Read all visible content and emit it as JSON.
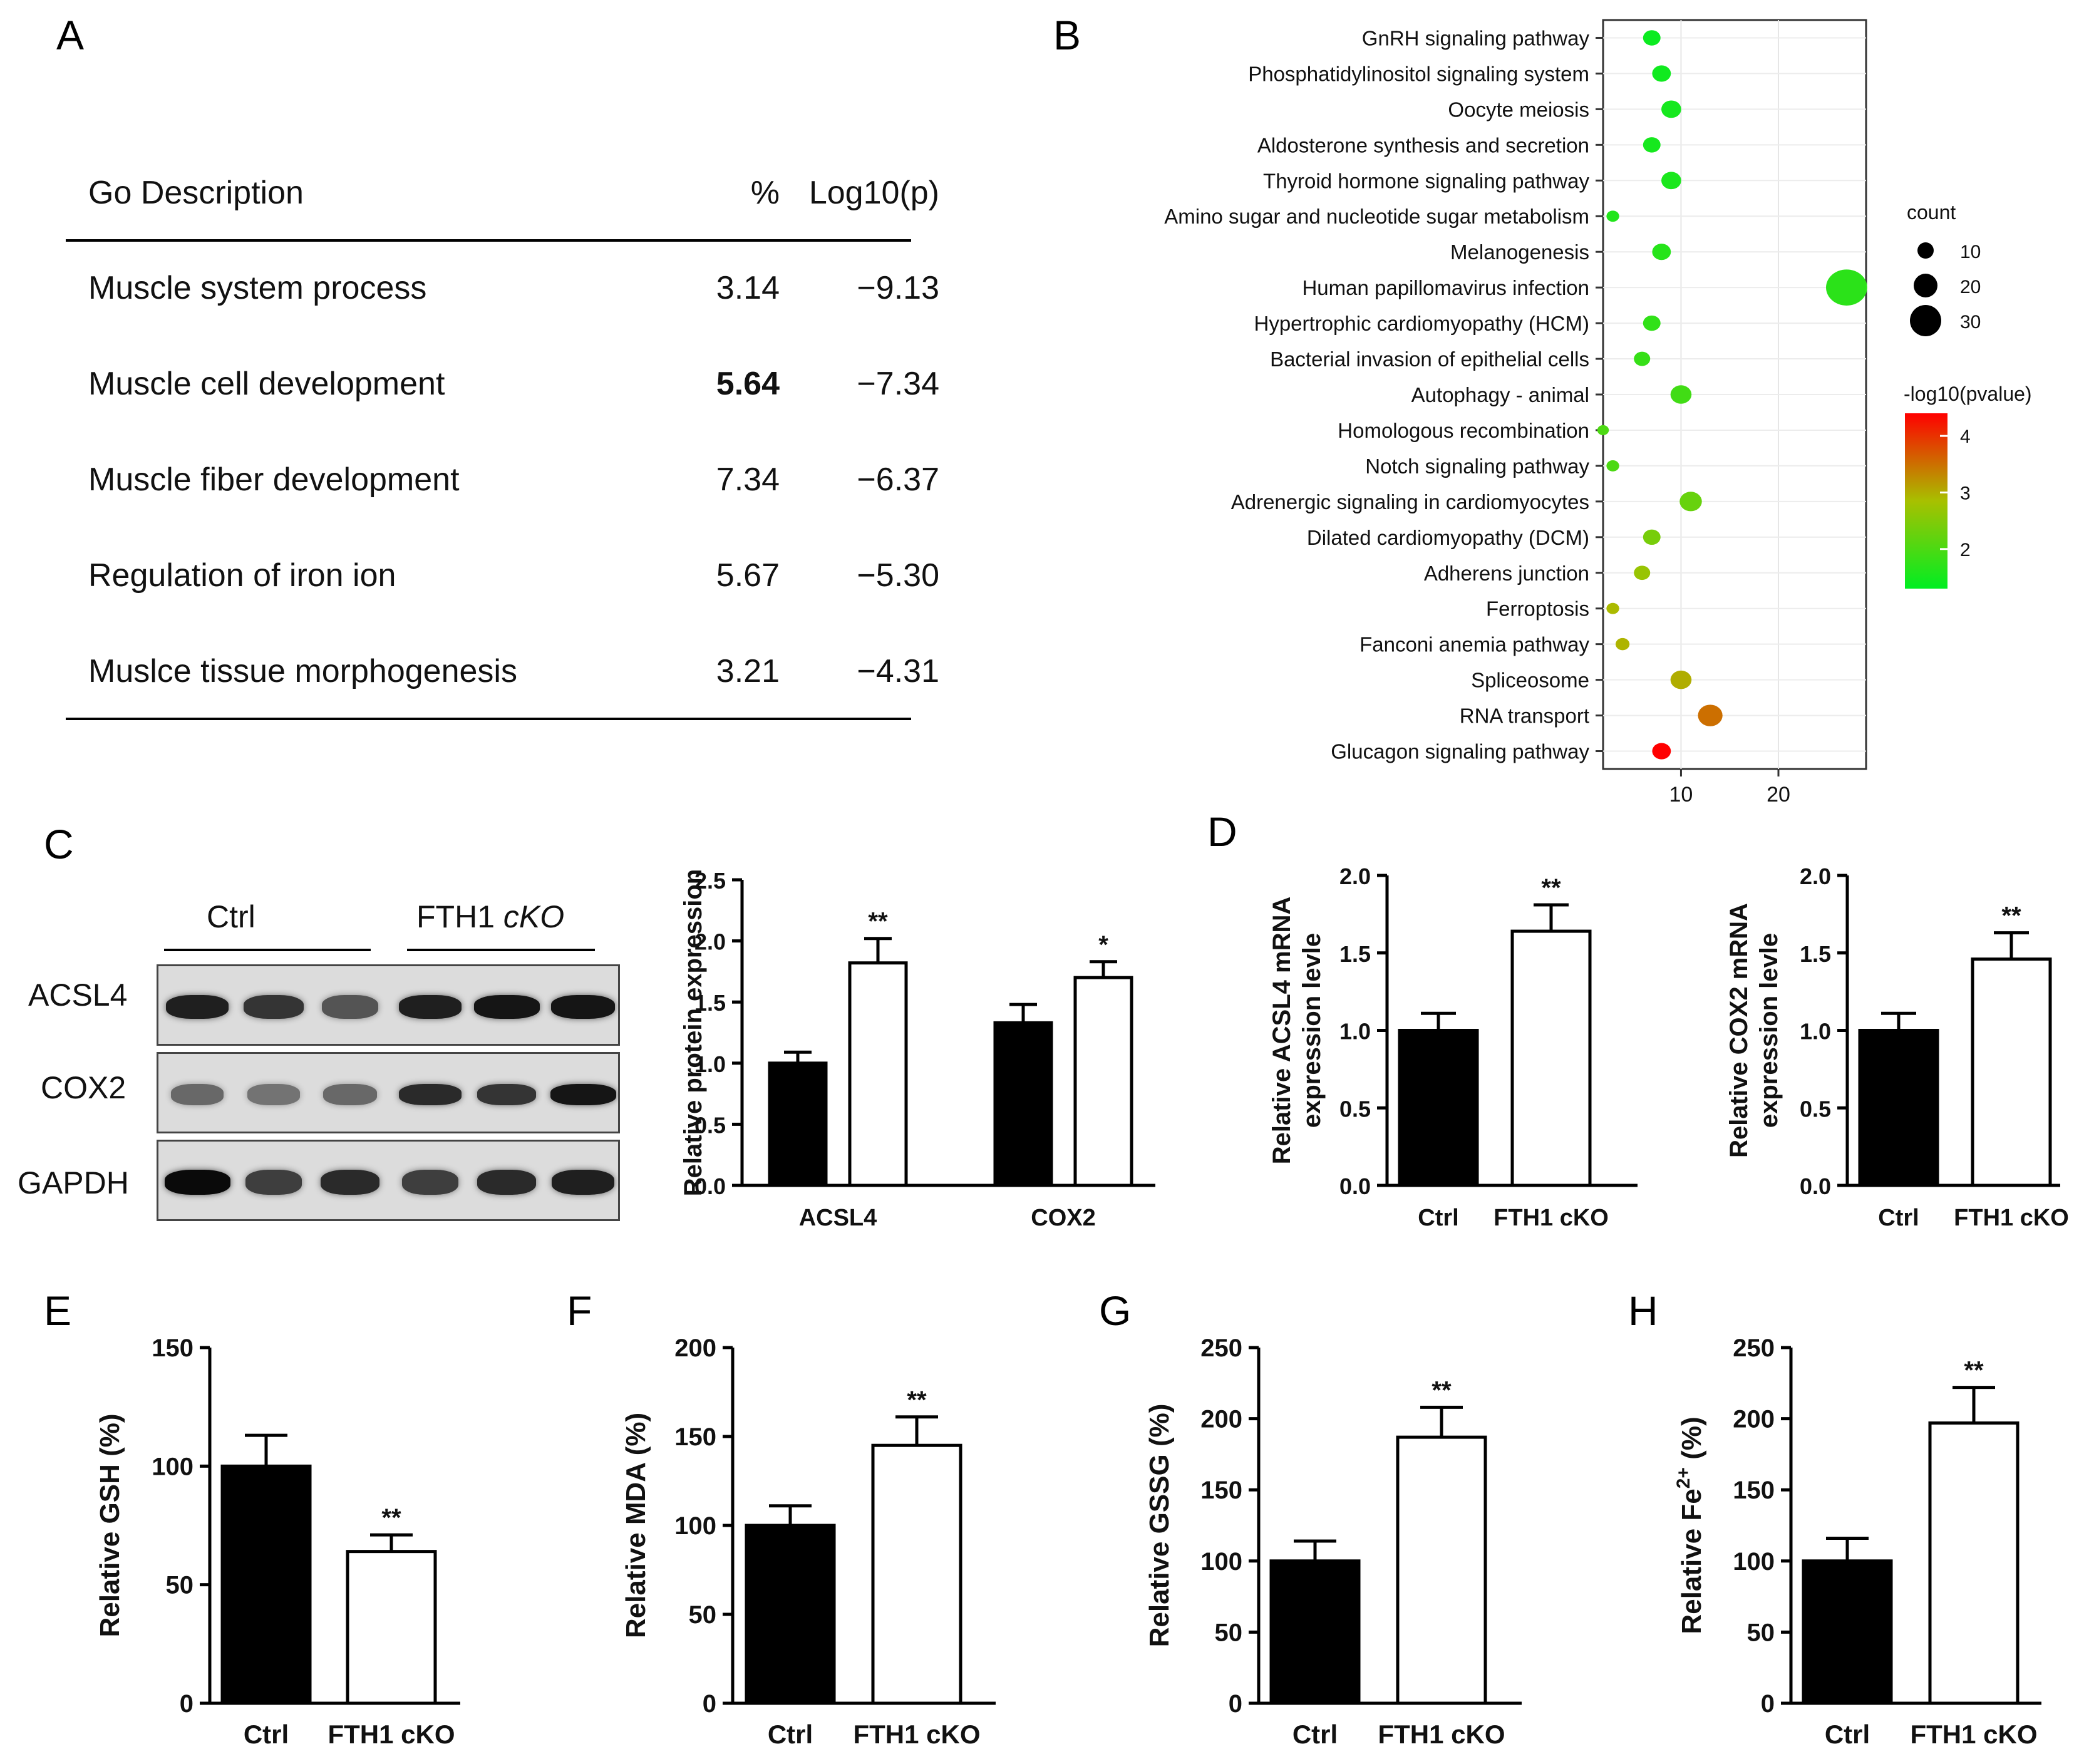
{
  "panels": {
    "A": "A",
    "B": "B",
    "C": "C",
    "D": "D",
    "E": "E",
    "F": "F",
    "G": "G",
    "H": "H"
  },
  "go_table": {
    "headers": [
      "Go Description",
      "%",
      "Log10(p)"
    ],
    "rows": [
      {
        "term": "Muscle system process",
        "pct": "3.14",
        "logp": "−9.13"
      },
      {
        "term": "Muscle cell development",
        "pct": "5.64",
        "logp": "−7.34"
      },
      {
        "term": "Muscle fiber development",
        "pct": "7.34",
        "logp": "−6.37"
      },
      {
        "term": "Regulation of iron ion",
        "pct": "5.67",
        "logp": "−5.30"
      },
      {
        "term": "Muslce tissue morphogenesis",
        "pct": "3.21",
        "logp": "−4.31"
      }
    ]
  },
  "western_blot": {
    "groups": [
      "Ctrl",
      "FTH1 cKO"
    ],
    "rows": [
      "ACSL4",
      "COX2",
      "GAPDH"
    ]
  },
  "chart_data": [
    {
      "id": "B",
      "type": "scatter",
      "title": "",
      "xlabel": "",
      "ylabel": "",
      "xlim": [
        2,
        29
      ],
      "xticks": [
        10,
        20
      ],
      "categories": [
        "GnRH signaling pathway",
        "Phosphatidylinositol signaling system",
        "Oocyte meiosis",
        "Aldosterone synthesis and secretion",
        "Thyroid hormone signaling pathway",
        "Amino sugar and nucleotide sugar metabolism",
        "Melanogenesis",
        "Human papillomavirus infection",
        "Hypertrophic cardiomyopathy (HCM)",
        "Bacterial invasion of epithelial cells",
        "Autophagy - animal",
        "Homologous recombination",
        "Notch signaling pathway",
        "Adrenergic signaling in cardiomyocytes",
        "Dilated cardiomyopathy (DCM)",
        "Adherens junction",
        "Ferroptosis",
        "Fanconi anemia pathway",
        "Spliceosome",
        "RNA transport",
        "Glucagon signaling pathway"
      ],
      "count": [
        7,
        8,
        9,
        7,
        9,
        3,
        8,
        27,
        7,
        6,
        10,
        2,
        3,
        11,
        7,
        6,
        3,
        4,
        10,
        13,
        8
      ],
      "neglog10p": [
        1.4,
        1.45,
        1.5,
        1.5,
        1.55,
        1.6,
        1.65,
        1.7,
        1.75,
        1.8,
        1.9,
        2.0,
        2.0,
        2.25,
        2.4,
        2.7,
        2.9,
        2.95,
        3.0,
        3.5,
        4.4
      ],
      "size_legend": {
        "title": "count",
        "values": [
          10,
          20,
          30
        ]
      },
      "color_legend": {
        "title": "-log10(pvalue)",
        "ticks": [
          2,
          3,
          4
        ],
        "range": [
          1.3,
          4.4
        ],
        "low_color": "#00ee22",
        "mid_color": "#a8c000",
        "high_color": "#ff0000"
      }
    },
    {
      "id": "C",
      "type": "bar",
      "ylabel": "Relative protein expression",
      "categories": [
        "ACSL4",
        "COX2"
      ],
      "ylim": [
        0,
        2.5
      ],
      "yticks": [
        "0.0",
        "0.5",
        "1.0",
        "1.5",
        "2.0",
        "2.5"
      ],
      "series": [
        {
          "name": "Ctrl",
          "values": [
            1.0,
            1.33
          ],
          "errors": [
            0.09,
            0.15
          ]
        },
        {
          "name": "FTH1 cKO",
          "values": [
            1.82,
            1.7
          ],
          "errors": [
            0.2,
            0.13
          ]
        }
      ],
      "significance": [
        "**",
        "*"
      ]
    },
    {
      "id": "D1",
      "type": "bar",
      "ylabel": [
        "Relative ACSL4 mRNA",
        "expression levle"
      ],
      "categories": [
        "Ctrl",
        "FTH1 cKO"
      ],
      "ylim": [
        0,
        2.0
      ],
      "yticks": [
        "0.0",
        "0.5",
        "1.0",
        "1.5",
        "2.0"
      ],
      "values": [
        1.0,
        1.64
      ],
      "errors": [
        0.11,
        0.17
      ],
      "significance": [
        "",
        "**"
      ]
    },
    {
      "id": "D2",
      "type": "bar",
      "ylabel": [
        "Relative COX2 mRNA",
        "expression levle"
      ],
      "categories": [
        "Ctrl",
        "FTH1 cKO"
      ],
      "ylim": [
        0,
        2.0
      ],
      "yticks": [
        "0.0",
        "0.5",
        "1.0",
        "1.5",
        "2.0"
      ],
      "values": [
        1.0,
        1.46
      ],
      "errors": [
        0.11,
        0.17
      ],
      "significance": [
        "",
        "**"
      ]
    },
    {
      "id": "E",
      "type": "bar",
      "ylabel": "Relative GSH (%)",
      "categories": [
        "Ctrl",
        "FTH1 cKO"
      ],
      "ylim": [
        0,
        150
      ],
      "yticks": [
        "0",
        "50",
        "100",
        "150"
      ],
      "values": [
        100,
        64
      ],
      "errors": [
        13,
        7
      ],
      "significance": [
        "",
        "**"
      ]
    },
    {
      "id": "F",
      "type": "bar",
      "ylabel": "Relative MDA (%)",
      "categories": [
        "Ctrl",
        "FTH1 cKO"
      ],
      "ylim": [
        0,
        200
      ],
      "yticks": [
        "0",
        "50",
        "100",
        "150",
        "200"
      ],
      "values": [
        100,
        145
      ],
      "errors": [
        11,
        16
      ],
      "significance": [
        "",
        "**"
      ]
    },
    {
      "id": "G",
      "type": "bar",
      "ylabel": "Relative GSSG (%)",
      "categories": [
        "Ctrl",
        "FTH1 cKO"
      ],
      "ylim": [
        0,
        250
      ],
      "yticks": [
        "0",
        "50",
        "100",
        "150",
        "200",
        "250"
      ],
      "values": [
        100,
        187
      ],
      "errors": [
        14,
        21
      ],
      "significance": [
        "",
        "**"
      ]
    },
    {
      "id": "H",
      "type": "bar",
      "ylabel": "Relative Fe",
      "ylabel_sup": "2+",
      "ylabel_suffix": " (%)",
      "categories": [
        "Ctrl",
        "FTH1 cKO"
      ],
      "ylim": [
        0,
        250
      ],
      "yticks": [
        "0",
        "50",
        "100",
        "150",
        "200",
        "250"
      ],
      "values": [
        100,
        197
      ],
      "errors": [
        16,
        25
      ],
      "significance": [
        "",
        "**"
      ]
    }
  ]
}
